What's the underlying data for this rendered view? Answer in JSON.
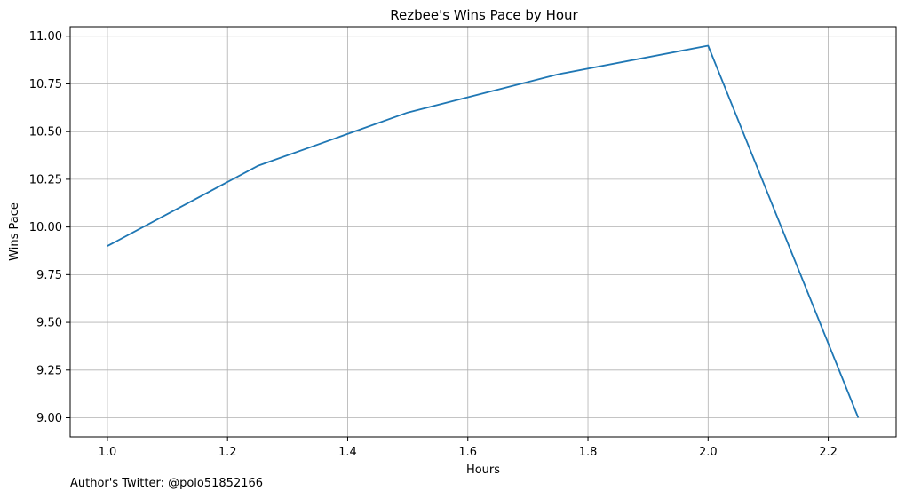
{
  "chart_data": {
    "type": "line",
    "title": "Rezbee's Wins Pace by Hour",
    "xlabel": "Hours",
    "ylabel": "Wins Pace",
    "xlim": [
      0.938,
      2.313
    ],
    "ylim": [
      8.9,
      11.05
    ],
    "xticks": [
      1.0,
      1.2,
      1.4,
      1.6,
      1.8,
      2.0,
      2.2
    ],
    "xtick_labels": [
      "1.0",
      "1.2",
      "1.4",
      "1.6",
      "1.8",
      "2.0",
      "2.2"
    ],
    "yticks": [
      9.0,
      9.25,
      9.5,
      9.75,
      10.0,
      10.25,
      10.5,
      10.75,
      11.0
    ],
    "ytick_labels": [
      "9.00",
      "9.25",
      "9.50",
      "9.75",
      "10.00",
      "10.25",
      "10.50",
      "10.75",
      "11.00"
    ],
    "grid": true,
    "series": [
      {
        "x": [
          1.0,
          1.25,
          1.5,
          1.75,
          2.0,
          2.25
        ],
        "y": [
          9.9,
          10.32,
          10.6,
          10.8,
          10.95,
          9.0
        ],
        "color": "#1f77b4"
      }
    ]
  },
  "footnote": "Author's Twitter: @polo51852166"
}
